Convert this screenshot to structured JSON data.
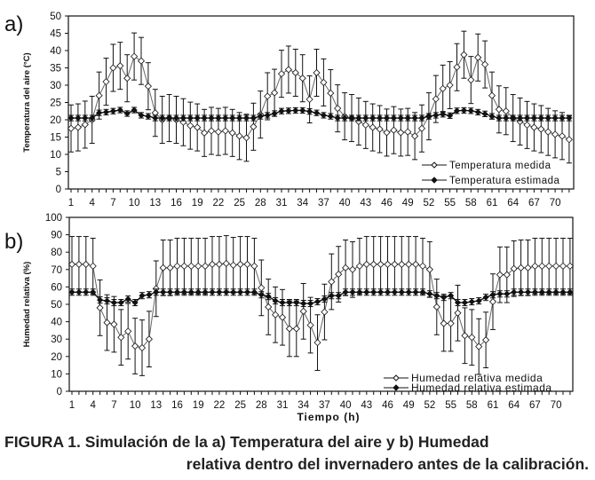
{
  "caption": {
    "line1": "FIGURA 1. Simulación de la a) Temperatura del aire y b) Humedad",
    "line2": "relativa dentro del invernadero antes de la calibración."
  },
  "chart_data": [
    {
      "type": "line",
      "panel_label": "a)",
      "ylabel": "Temperatura del aire (°C)",
      "xlabel": "",
      "ylim": [
        0,
        50
      ],
      "yticks": [
        0,
        5,
        10,
        15,
        20,
        25,
        30,
        35,
        40,
        45,
        50
      ],
      "xticks": [
        1,
        4,
        7,
        10,
        13,
        16,
        19,
        22,
        25,
        28,
        31,
        34,
        37,
        40,
        43,
        46,
        49,
        52,
        55,
        58,
        61,
        64,
        67,
        70
      ],
      "legend": "bottom-right",
      "series": [
        {
          "name": "Temperatura medida",
          "marker": "open-diamond",
          "values": [
            17.5,
            17.8,
            18.6,
            20,
            27,
            31,
            35,
            35.6,
            32,
            38.3,
            37,
            29.7,
            22,
            20,
            20.5,
            20,
            19.3,
            18.3,
            17.8,
            16.2,
            16.8,
            16.5,
            16.8,
            16.2,
            15.3,
            14.8,
            18,
            21.5,
            26.8,
            27.8,
            33.3,
            34.5,
            33.6,
            32,
            25.9,
            33.6,
            30.8,
            27.7,
            23.3,
            21,
            20.5,
            19.5,
            18.5,
            17.8,
            17.3,
            16.3,
            17,
            16.3,
            16.5,
            15.3,
            17.5,
            21,
            26,
            29,
            30,
            35.2,
            38.8,
            31.5,
            38,
            36,
            27,
            23,
            22.5,
            20.5,
            19.5,
            18.5,
            17.8,
            17.3,
            16.5,
            15.8,
            15.3,
            14.3
          ],
          "error": 6.8
        },
        {
          "name": "Temperatura estimada",
          "marker": "filled-diamond",
          "values": [
            20.5,
            20.5,
            20.5,
            20.5,
            22,
            22.2,
            22.5,
            22.8,
            21.8,
            22.8,
            21.3,
            21,
            20.5,
            20.5,
            20.5,
            20.5,
            20.5,
            20.5,
            20.5,
            20.5,
            20.5,
            20.5,
            20.5,
            20.5,
            20.5,
            20.5,
            20.5,
            21,
            21.3,
            21.8,
            22.5,
            22.6,
            22.7,
            22.7,
            22.4,
            22,
            21.3,
            21,
            20.5,
            20.5,
            20.5,
            20.5,
            20.5,
            20.5,
            20.5,
            20.5,
            20.5,
            20.5,
            20.5,
            20.5,
            20.5,
            21,
            21.3,
            21.6,
            21.2,
            22.6,
            22.7,
            22.6,
            22.2,
            21.7,
            21,
            20.5,
            20.5,
            20.5,
            20.5,
            20.5,
            20.5,
            20.5,
            20.5,
            20.5,
            20.5,
            20.5
          ],
          "error": 0.8
        }
      ]
    },
    {
      "type": "line",
      "panel_label": "b)",
      "ylabel": "Humedad relativa (%)",
      "xlabel": "Tiempo (h)",
      "ylim": [
        0,
        100
      ],
      "yticks": [
        0,
        10,
        20,
        30,
        40,
        50,
        60,
        70,
        80,
        90,
        100
      ],
      "xticks": [
        1,
        4,
        7,
        10,
        13,
        16,
        19,
        22,
        25,
        28,
        31,
        34,
        37,
        40,
        43,
        46,
        49,
        52,
        55,
        58,
        61,
        64,
        67,
        70
      ],
      "legend": "bottom-right",
      "series": [
        {
          "name": "Humedad relativa medida",
          "marker": "open-diamond",
          "values": [
            73,
            73,
            73,
            72,
            48,
            39.5,
            38.5,
            31,
            34.5,
            26,
            25,
            30,
            59,
            71,
            71,
            72,
            72,
            72,
            72,
            72,
            73,
            73,
            73.5,
            72.5,
            73,
            73,
            72,
            59.5,
            48.5,
            44,
            42.5,
            36,
            36,
            46,
            38,
            28,
            45.6,
            63,
            67.3,
            71,
            70,
            72,
            73,
            73,
            73,
            73,
            73,
            73,
            73,
            73,
            72,
            70,
            48.5,
            39,
            39,
            45,
            32,
            31,
            25.7,
            29.5,
            51.5,
            67,
            67,
            70.5,
            71,
            71,
            72,
            72,
            72,
            72,
            72,
            72
          ],
          "error": 16
        },
        {
          "name": "Humedad relativa estimada",
          "marker": "filled-diamond",
          "values": [
            57,
            57,
            57,
            57,
            52.5,
            52,
            51,
            51,
            53,
            51,
            55,
            55.5,
            57,
            57,
            57,
            57,
            57,
            57,
            57,
            57,
            57,
            57,
            57,
            57,
            57,
            57,
            57,
            55.5,
            54.5,
            52,
            51,
            51,
            51,
            50.5,
            50.5,
            51.5,
            53,
            55,
            55,
            57,
            57,
            57,
            57,
            57,
            57,
            57,
            57,
            57,
            57,
            57,
            57,
            56,
            55,
            54,
            55,
            51,
            51,
            51.5,
            52,
            54,
            55.5,
            56,
            56,
            57,
            57,
            57,
            57,
            57,
            57,
            57,
            57,
            57
          ],
          "error": 1.8
        }
      ]
    }
  ]
}
